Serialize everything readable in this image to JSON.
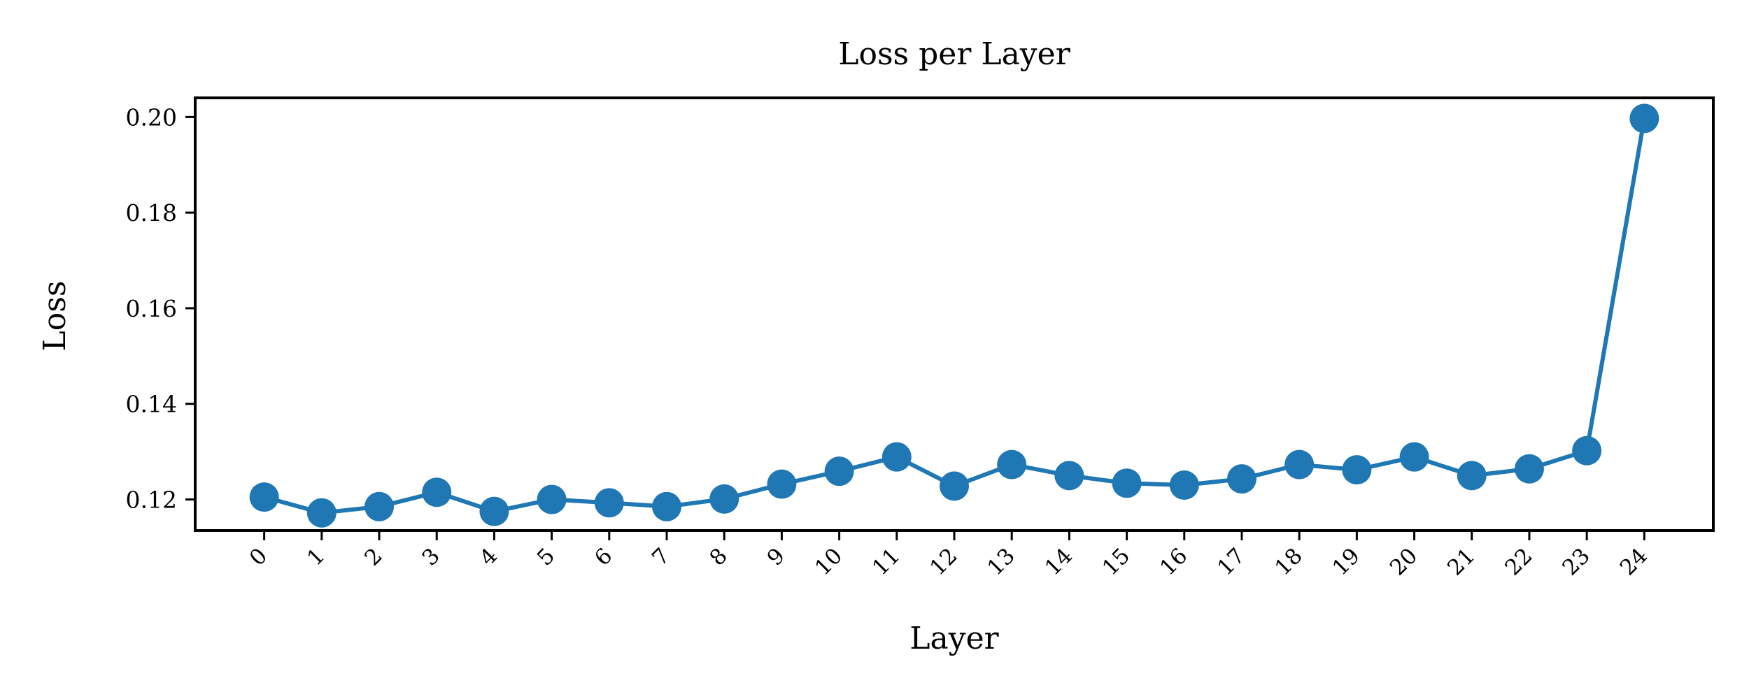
{
  "chart_data": {
    "type": "line",
    "title": "Loss per Layer",
    "xlabel": "Layer",
    "ylabel": "Loss",
    "x": [
      0,
      1,
      2,
      3,
      4,
      5,
      6,
      7,
      8,
      9,
      10,
      11,
      12,
      13,
      14,
      15,
      16,
      17,
      18,
      19,
      20,
      21,
      22,
      23,
      24
    ],
    "series": [
      {
        "values": [
          0.1205,
          0.1172,
          0.1185,
          0.1215,
          0.1175,
          0.12,
          0.1193,
          0.1185,
          0.1201,
          0.1232,
          0.1259,
          0.1289,
          0.1228,
          0.1273,
          0.125,
          0.1234,
          0.123,
          0.1243,
          0.1273,
          0.1262,
          0.1289,
          0.125,
          0.1264,
          0.1302,
          0.1997
        ]
      }
    ],
    "yticks": [
      "0.12",
      "0.14",
      "0.16",
      "0.18",
      "0.20"
    ],
    "ytick_values": [
      0.12,
      0.14,
      0.16,
      0.18,
      0.2
    ],
    "xticks": [
      "0",
      "1",
      "2",
      "3",
      "4",
      "5",
      "6",
      "7",
      "8",
      "9",
      "10",
      "11",
      "12",
      "13",
      "14",
      "15",
      "16",
      "17",
      "18",
      "19",
      "20",
      "21",
      "22",
      "23",
      "24"
    ],
    "xlim": [
      -1.2,
      25.2
    ],
    "ylim": [
      0.1135,
      0.204
    ],
    "grid": false,
    "colors": {
      "line": "#1f77b4",
      "axes": "#000000",
      "background": "#ffffff"
    }
  }
}
